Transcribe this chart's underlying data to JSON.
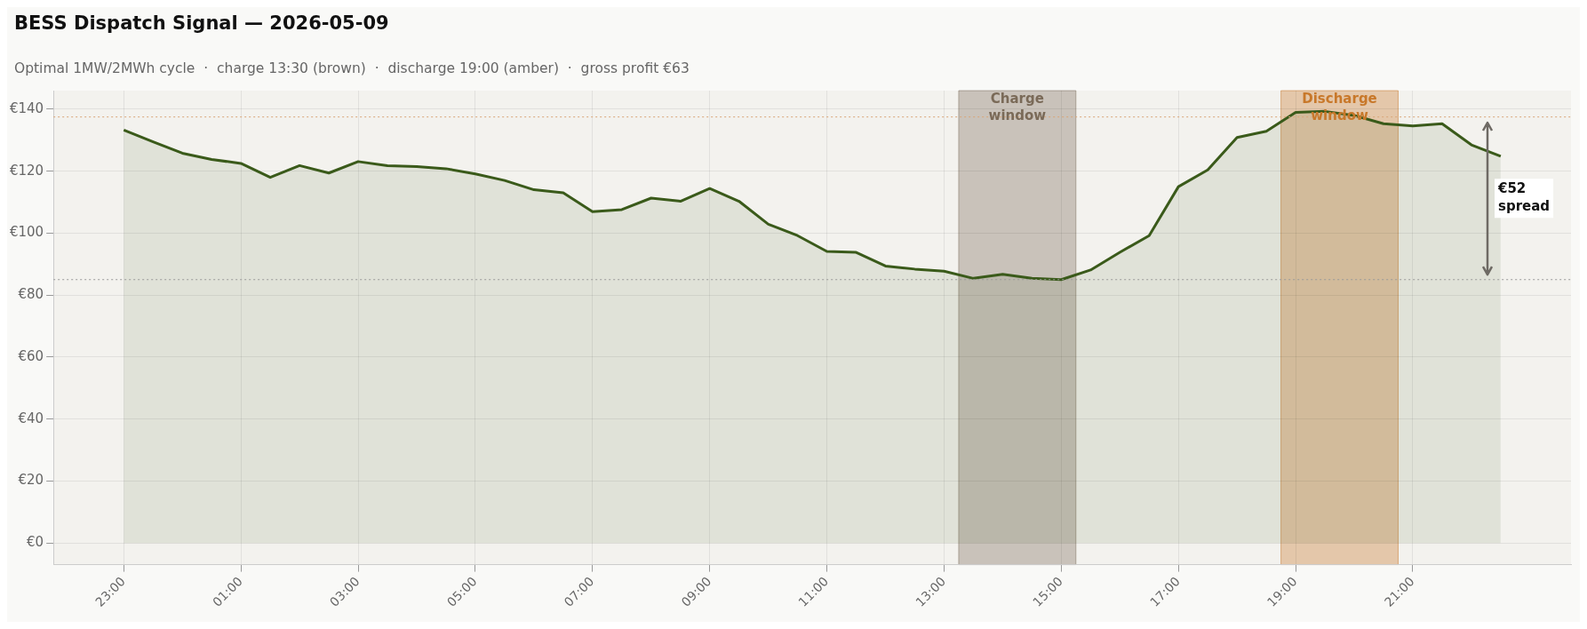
{
  "chart_data": {
    "type": "area",
    "title": "BESS Dispatch Signal — 2026-05-09",
    "subtitle": "Optimal 1MW/2MWh cycle  ·  charge 13:30 (brown)  ·  discharge 19:00 (amber)  ·  gross profit €63",
    "x": [
      "2026-05-08T23:00",
      "2026-05-08T23:30",
      "2026-05-09T00:00",
      "2026-05-09T00:30",
      "2026-05-09T01:00",
      "2026-05-09T01:30",
      "2026-05-09T02:00",
      "2026-05-09T02:30",
      "2026-05-09T03:00",
      "2026-05-09T03:30",
      "2026-05-09T04:00",
      "2026-05-09T04:30",
      "2026-05-09T05:00",
      "2026-05-09T05:30",
      "2026-05-09T06:00",
      "2026-05-09T06:30",
      "2026-05-09T07:00",
      "2026-05-09T07:30",
      "2026-05-09T08:00",
      "2026-05-09T08:30",
      "2026-05-09T09:00",
      "2026-05-09T09:30",
      "2026-05-09T10:00",
      "2026-05-09T10:30",
      "2026-05-09T11:00",
      "2026-05-09T11:30",
      "2026-05-09T12:00",
      "2026-05-09T12:30",
      "2026-05-09T13:00",
      "2026-05-09T13:30",
      "2026-05-09T14:00",
      "2026-05-09T14:30",
      "2026-05-09T15:00",
      "2026-05-09T15:30",
      "2026-05-09T16:00",
      "2026-05-09T16:30",
      "2026-05-09T17:00",
      "2026-05-09T17:30",
      "2026-05-09T18:00",
      "2026-05-09T18:30",
      "2026-05-09T19:00",
      "2026-05-09T19:30",
      "2026-05-09T20:00",
      "2026-05-09T20:30",
      "2026-05-09T21:00",
      "2026-05-09T21:30",
      "2026-05-09T22:00",
      "2026-05-09T22:30"
    ],
    "series": [
      {
        "color": "#3a5a1a",
        "values": [
          133.3,
          129.5,
          125.8,
          123.8,
          122.5,
          118,
          121.8,
          119.4,
          123.1,
          121.8,
          121.5,
          120.8,
          119.1,
          117,
          114,
          113,
          106.9,
          107.6,
          111.3,
          110.3,
          114.4,
          110.3,
          102.9,
          99.2,
          94.1,
          93.8,
          89.4,
          88.4,
          87.7,
          85.4,
          86.7,
          85.4,
          85,
          88.1,
          93.8,
          99.2,
          115,
          120.4,
          130.9,
          132.9,
          139,
          139.3,
          138,
          135.3,
          134.6,
          135.3,
          128.5,
          124.8
        ]
      }
    ],
    "xlim": [
      "2026-05-08T21:48",
      "2026-05-09T23:42"
    ],
    "ylim": [
      -7,
      146
    ],
    "xticks": [
      {
        "value": "2026-05-08T23:00",
        "label": "23:00"
      },
      {
        "value": "2026-05-09T01:00",
        "label": "01:00"
      },
      {
        "value": "2026-05-09T03:00",
        "label": "03:00"
      },
      {
        "value": "2026-05-09T05:00",
        "label": "05:00"
      },
      {
        "value": "2026-05-09T07:00",
        "label": "07:00"
      },
      {
        "value": "2026-05-09T09:00",
        "label": "09:00"
      },
      {
        "value": "2026-05-09T11:00",
        "label": "11:00"
      },
      {
        "value": "2026-05-09T13:00",
        "label": "13:00"
      },
      {
        "value": "2026-05-09T15:00",
        "label": "15:00"
      },
      {
        "value": "2026-05-09T17:00",
        "label": "17:00"
      },
      {
        "value": "2026-05-09T19:00",
        "label": "19:00"
      },
      {
        "value": "2026-05-09T21:00",
        "label": "21:00"
      }
    ],
    "yticks": [
      {
        "value": 0,
        "label": "€0"
      },
      {
        "value": 20,
        "label": "€20"
      },
      {
        "value": 40,
        "label": "€40"
      },
      {
        "value": 60,
        "label": "€60"
      },
      {
        "value": 80,
        "label": "€80"
      },
      {
        "value": 100,
        "label": "€100"
      },
      {
        "value": 120,
        "label": "€120"
      },
      {
        "value": 140,
        "label": "€140"
      }
    ],
    "bands": [
      {
        "axis": "x",
        "from": "2026-05-09T13:15",
        "to": "2026-05-09T15:15",
        "label": "Charge window",
        "color": "#7a6a58"
      },
      {
        "axis": "x",
        "from": "2026-05-09T18:45",
        "to": "2026-05-09T20:45",
        "label": "Discharge window",
        "color": "#c8782a"
      }
    ],
    "ref_lines": [
      {
        "axis": "y",
        "value": 137.5,
        "color": "#d9a577",
        "line_style": "dotted"
      },
      {
        "axis": "y",
        "value": 85,
        "color": "#999999",
        "line_style": "dotted"
      }
    ],
    "annotations": [
      "€52 spread"
    ],
    "grid": true,
    "legend": false,
    "marker": "none",
    "line_style": "solid"
  }
}
